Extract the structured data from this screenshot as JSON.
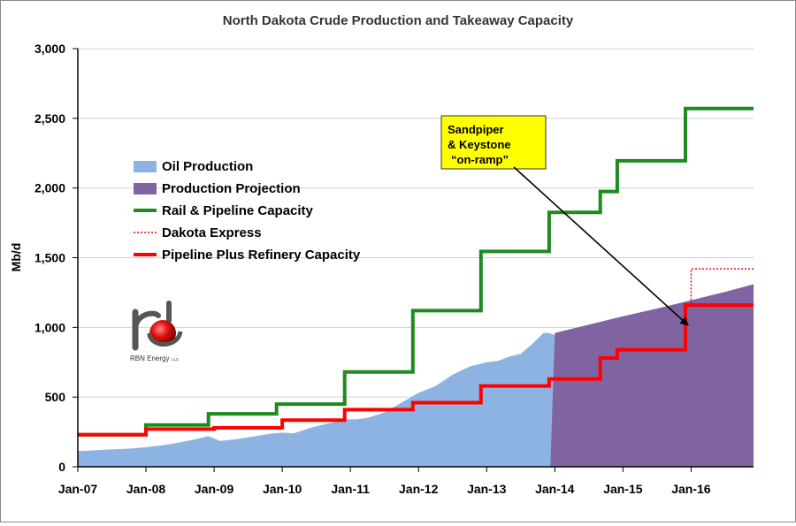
{
  "chart_data": {
    "type": "area",
    "title": "North Dakota Crude Production and Takeaway Capacity",
    "xlabel": "",
    "ylabel": "Mb/d",
    "x_range": [
      "2007-01",
      "2016-12"
    ],
    "ylim": [
      0,
      3000
    ],
    "y_ticks": [
      "0",
      "500",
      "1,000",
      "1,500",
      "2,000",
      "2,500",
      "3,000"
    ],
    "x_ticks": [
      "Jan-07",
      "Jan-08",
      "Jan-09",
      "Jan-10",
      "Jan-11",
      "Jan-12",
      "Jan-13",
      "Jan-14",
      "Jan-15",
      "Jan-16"
    ],
    "grid": "horizontal",
    "legend_position": "upper-left",
    "colors": {
      "oil_production": "#8db3e2",
      "production_projection": "#8064a2",
      "rail_pipeline": "#1f8a1f",
      "dakota_express": "#ff0000",
      "pipeline_refinery": "#ff0000"
    },
    "series": [
      {
        "name": "Oil Production",
        "style": "area",
        "color": "#8db3e2",
        "points": [
          [
            "2007-01",
            112
          ],
          [
            "2007-04",
            118
          ],
          [
            "2007-07",
            124
          ],
          [
            "2007-10",
            130
          ],
          [
            "2008-01",
            140
          ],
          [
            "2008-04",
            155
          ],
          [
            "2008-07",
            175
          ],
          [
            "2008-10",
            200
          ],
          [
            "2008-12",
            220
          ],
          [
            "2009-02",
            185
          ],
          [
            "2009-05",
            198
          ],
          [
            "2009-08",
            218
          ],
          [
            "2009-11",
            238
          ],
          [
            "2010-01",
            245
          ],
          [
            "2010-03",
            240
          ],
          [
            "2010-06",
            280
          ],
          [
            "2010-09",
            310
          ],
          [
            "2010-12",
            340
          ],
          [
            "2011-02",
            340
          ],
          [
            "2011-04",
            350
          ],
          [
            "2011-07",
            390
          ],
          [
            "2011-10",
            460
          ],
          [
            "2012-01",
            530
          ],
          [
            "2012-04",
            580
          ],
          [
            "2012-07",
            660
          ],
          [
            "2012-10",
            720
          ],
          [
            "2013-01",
            750
          ],
          [
            "2013-03",
            760
          ],
          [
            "2013-05",
            790
          ],
          [
            "2013-07",
            810
          ],
          [
            "2013-09",
            880
          ],
          [
            "2013-11",
            960
          ],
          [
            "2013-12",
            960
          ],
          [
            "2014-01",
            945
          ]
        ]
      },
      {
        "name": "Production Projection",
        "style": "area",
        "color": "#8064a2",
        "points": [
          [
            "2014-01",
            960
          ],
          [
            "2014-07",
            1020
          ],
          [
            "2015-01",
            1080
          ],
          [
            "2015-07",
            1135
          ],
          [
            "2016-01",
            1195
          ],
          [
            "2016-07",
            1255
          ],
          [
            "2016-12",
            1310
          ]
        ]
      },
      {
        "name": "Rail & Pipeline Capacity",
        "style": "step",
        "color": "#1f8a1f",
        "points": [
          [
            "2007-01",
            230
          ],
          [
            "2008-01",
            300
          ],
          [
            "2008-12",
            380
          ],
          [
            "2009-12",
            450
          ],
          [
            "2010-12",
            680
          ],
          [
            "2011-12",
            1120
          ],
          [
            "2012-12",
            1545
          ],
          [
            "2013-12",
            1825
          ],
          [
            "2014-09",
            1975
          ],
          [
            "2014-12",
            2195
          ],
          [
            "2015-12",
            2570
          ],
          [
            "2016-12",
            2570
          ]
        ]
      },
      {
        "name": "Dakota Express",
        "style": "step-dotted",
        "color": "#ff0000",
        "points": [
          [
            "2015-12",
            1160
          ],
          [
            "2016-01",
            1420
          ],
          [
            "2016-12",
            1420
          ]
        ]
      },
      {
        "name": "Pipeline Plus Refinery Capacity",
        "style": "step",
        "color": "#ff0000",
        "points": [
          [
            "2007-01",
            230
          ],
          [
            "2008-01",
            270
          ],
          [
            "2009-01",
            280
          ],
          [
            "2010-01",
            335
          ],
          [
            "2010-12",
            410
          ],
          [
            "2011-12",
            460
          ],
          [
            "2012-12",
            580
          ],
          [
            "2013-12",
            630
          ],
          [
            "2014-09",
            780
          ],
          [
            "2014-12",
            840
          ],
          [
            "2015-12",
            1160
          ],
          [
            "2016-12",
            1160
          ]
        ]
      }
    ],
    "annotation": {
      "lines": [
        "Sandpiper",
        "& Keystone",
        "“on-ramp”"
      ],
      "box_color": "#ffff00",
      "arrow_target": [
        "2016-01",
        1000
      ]
    },
    "logo": {
      "text": "RBN Energy",
      "suffix": "LLC"
    }
  }
}
